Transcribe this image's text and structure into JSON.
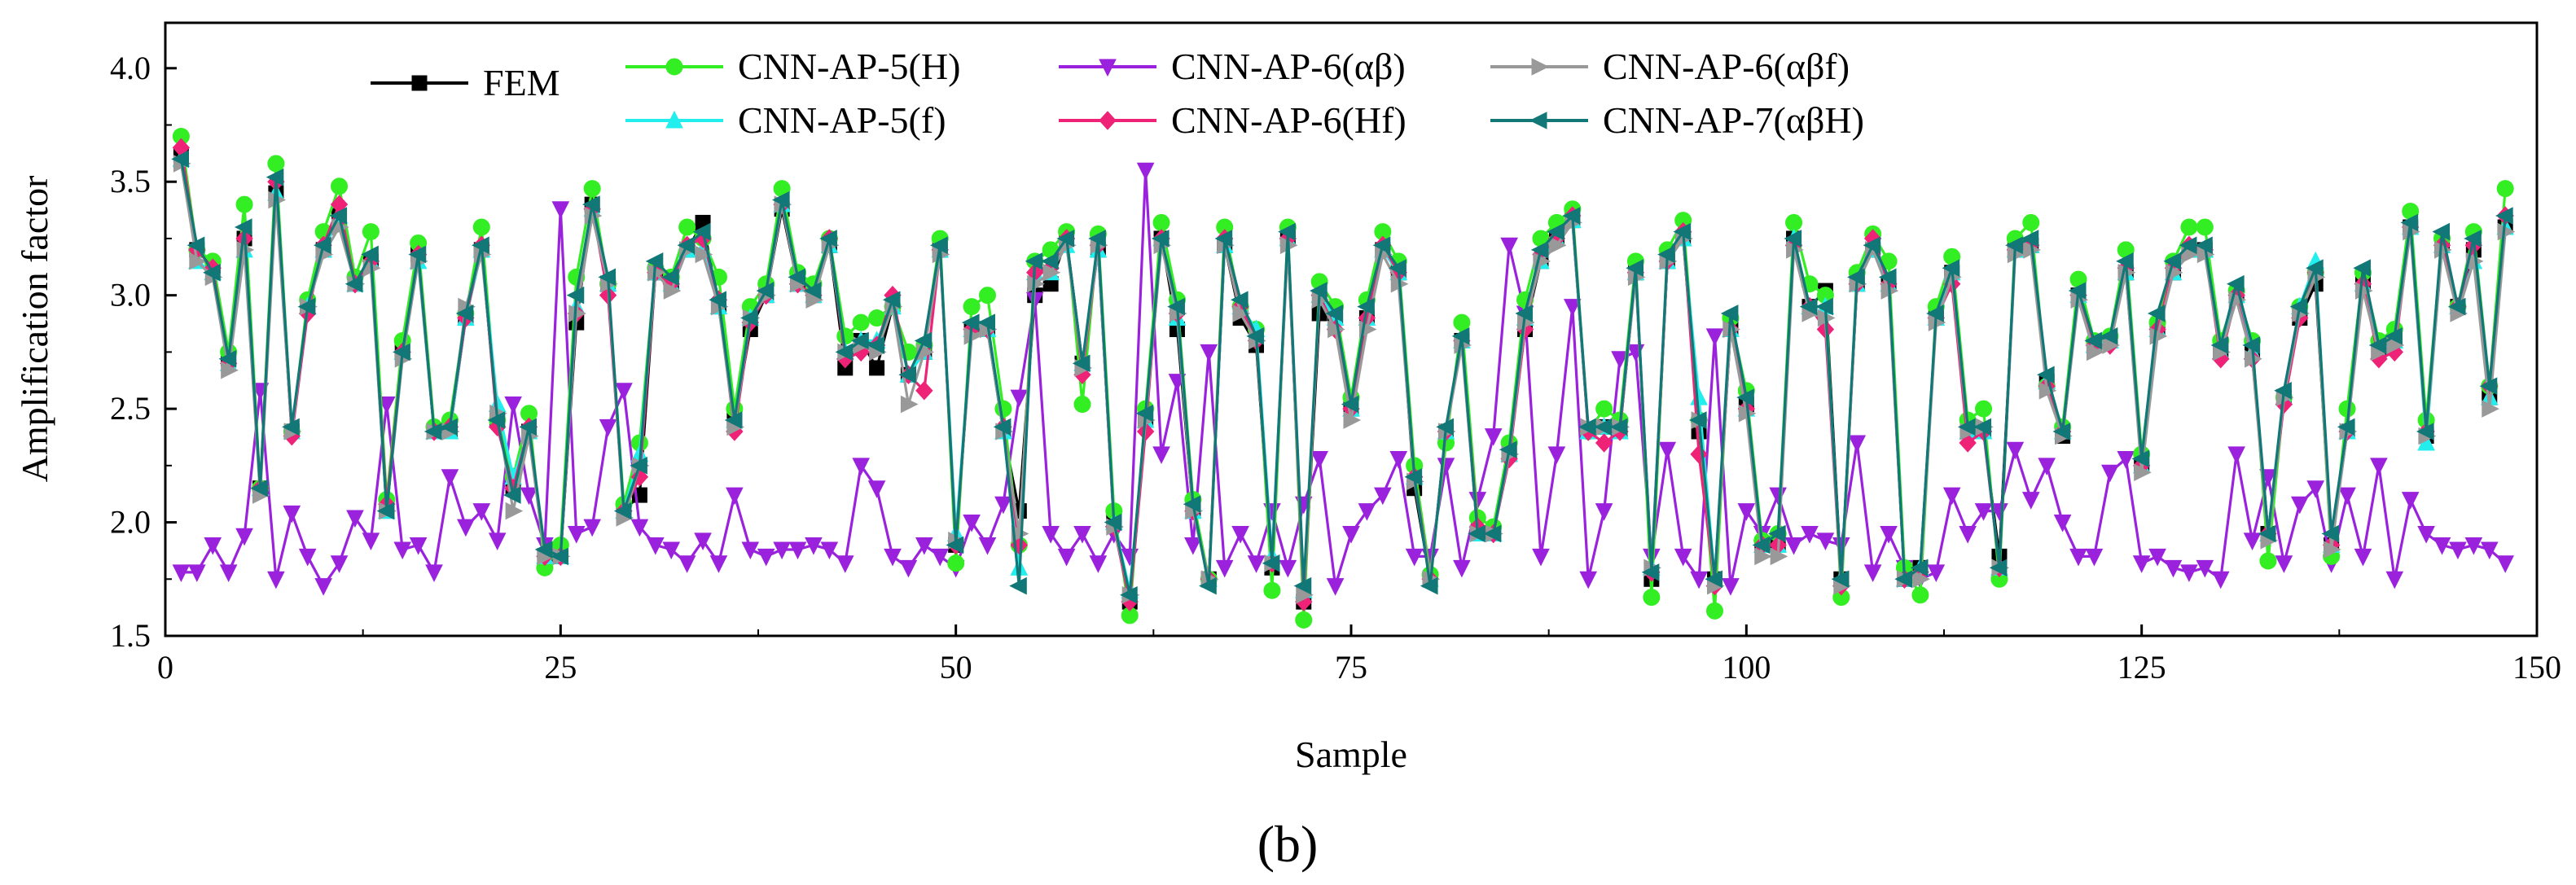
{
  "chart_data": {
    "type": "line",
    "title": "",
    "xlabel": "Sample",
    "ylabel": "Amplification factor",
    "panel_label": "(b)",
    "xlim": [
      0,
      150
    ],
    "ylim": [
      1.5,
      4.2
    ],
    "xticks": [
      0,
      25,
      50,
      75,
      100,
      125,
      150
    ],
    "yticks": [
      1.5,
      2.0,
      2.5,
      3.0,
      3.5,
      4.0
    ],
    "x_tick_labels": [
      "0",
      "25",
      "50",
      "75",
      "100",
      "125",
      "150"
    ],
    "y_tick_labels": [
      "1.5",
      "2.0",
      "2.5",
      "3.0",
      "3.5",
      "4.0"
    ],
    "grid": false,
    "legend_position": "top",
    "x_start": 1,
    "x_step": 1,
    "series": [
      {
        "name": "FEM",
        "color": "#000000",
        "marker": "square",
        "values": [
          3.62,
          3.2,
          3.13,
          2.72,
          3.25,
          2.15,
          3.45,
          2.4,
          2.95,
          3.2,
          3.35,
          3.05,
          3.15,
          2.05,
          2.75,
          3.18,
          2.4,
          2.4,
          2.9,
          3.2,
          2.45,
          2.15,
          2.4,
          1.85,
          1.85,
          2.88,
          3.4,
          3.05,
          2.05,
          2.12,
          3.1,
          3.05,
          3.2,
          3.32,
          2.95,
          2.45,
          2.85,
          3.0,
          3.38,
          3.05,
          3.0,
          3.22,
          2.68,
          2.8,
          2.68,
          2.95,
          2.65,
          2.75,
          3.2,
          1.9,
          2.85,
          2.85,
          2.4,
          2.05,
          3.0,
          3.05,
          3.25,
          2.7,
          3.2,
          2.0,
          1.65,
          2.45,
          3.25,
          2.85,
          2.05,
          1.75,
          3.22,
          2.9,
          2.78,
          1.8,
          3.25,
          1.65,
          2.92,
          2.9,
          2.5,
          2.9,
          3.2,
          3.1,
          2.15,
          1.75,
          2.4,
          2.8,
          1.95,
          1.95,
          2.3,
          2.85,
          3.15,
          3.25,
          3.33,
          2.4,
          2.42,
          2.4,
          3.1,
          1.75,
          3.15,
          3.25,
          2.4,
          1.75,
          2.85,
          2.52,
          1.9,
          1.9,
          3.25,
          2.95,
          3.02,
          1.75,
          3.05,
          3.2,
          3.05,
          1.75,
          1.8,
          2.9,
          3.1,
          2.4,
          2.4,
          1.85,
          3.2,
          3.22,
          2.62,
          2.38,
          3.0,
          2.78,
          2.8,
          3.1,
          2.25,
          2.85,
          3.1,
          3.2,
          3.2,
          2.75,
          3.0,
          2.75,
          1.95,
          2.55,
          2.9,
          3.05,
          1.9,
          2.4,
          3.05,
          2.75,
          2.8,
          3.3,
          2.38,
          3.22,
          2.95,
          3.2,
          2.55,
          3.3
        ]
      },
      {
        "name": "CNN-AP-5(H)",
        "color": "#33ee22",
        "marker": "circle",
        "values": [
          3.7,
          3.2,
          3.15,
          2.75,
          3.4,
          2.15,
          3.58,
          2.4,
          2.98,
          3.28,
          3.48,
          3.08,
          3.28,
          2.1,
          2.8,
          3.23,
          2.42,
          2.45,
          2.92,
          3.3,
          2.45,
          2.2,
          2.48,
          1.8,
          1.9,
          3.08,
          3.47,
          3.05,
          2.08,
          2.35,
          3.12,
          3.08,
          3.3,
          3.25,
          3.08,
          2.5,
          2.95,
          3.05,
          3.47,
          3.1,
          3.05,
          3.25,
          2.82,
          2.88,
          2.9,
          2.95,
          2.75,
          2.78,
          3.25,
          1.82,
          2.95,
          3.0,
          2.5,
          1.9,
          3.15,
          3.2,
          3.28,
          2.52,
          3.27,
          2.05,
          1.59,
          2.5,
          3.32,
          2.98,
          2.1,
          1.75,
          3.3,
          2.95,
          2.85,
          1.7,
          3.3,
          1.57,
          3.06,
          2.95,
          2.55,
          2.98,
          3.28,
          3.15,
          2.25,
          1.77,
          2.35,
          2.88,
          2.02,
          1.98,
          2.35,
          2.98,
          3.25,
          3.32,
          3.38,
          2.4,
          2.5,
          2.45,
          3.15,
          1.67,
          3.2,
          3.33,
          2.45,
          1.61,
          2.9,
          2.58,
          1.92,
          1.95,
          3.32,
          3.05,
          3.0,
          1.67,
          3.1,
          3.27,
          3.15,
          1.8,
          1.68,
          2.95,
          3.17,
          2.45,
          2.5,
          1.75,
          3.25,
          3.32,
          2.6,
          2.42,
          3.07,
          2.8,
          2.82,
          3.2,
          2.3,
          2.88,
          3.15,
          3.3,
          3.3,
          2.8,
          3.02,
          2.8,
          1.83,
          2.55,
          2.95,
          3.1,
          1.85,
          2.5,
          3.1,
          2.8,
          2.85,
          3.37,
          2.45,
          3.25,
          2.95,
          3.28,
          2.6,
          3.47
        ]
      },
      {
        "name": "CNN-AP-5(f)",
        "color": "#22eeee",
        "marker": "triangle-up",
        "values": [
          3.6,
          3.15,
          3.1,
          2.7,
          3.2,
          2.15,
          3.45,
          2.4,
          2.95,
          3.2,
          3.35,
          3.05,
          3.15,
          2.05,
          2.75,
          3.15,
          2.4,
          2.4,
          2.9,
          3.2,
          2.52,
          2.2,
          2.4,
          1.85,
          1.85,
          2.95,
          3.38,
          3.05,
          2.05,
          2.3,
          3.1,
          3.05,
          3.2,
          3.2,
          2.95,
          2.45,
          2.9,
          3.0,
          3.4,
          3.05,
          3.0,
          3.22,
          2.75,
          2.8,
          2.8,
          2.95,
          2.65,
          2.75,
          3.2,
          1.95,
          2.85,
          2.85,
          2.4,
          1.8,
          3.1,
          3.1,
          3.22,
          2.7,
          3.2,
          2.0,
          1.7,
          2.45,
          3.25,
          2.9,
          2.05,
          1.75,
          3.22,
          2.95,
          2.85,
          1.85,
          3.25,
          1.7,
          3.0,
          2.9,
          2.5,
          2.9,
          3.2,
          3.1,
          2.2,
          1.75,
          2.4,
          2.8,
          1.95,
          1.95,
          2.3,
          2.9,
          3.15,
          3.25,
          3.33,
          2.4,
          2.42,
          2.4,
          3.1,
          1.8,
          3.15,
          3.25,
          2.55,
          1.75,
          2.85,
          2.5,
          1.9,
          1.9,
          3.25,
          2.95,
          2.95,
          1.75,
          3.05,
          3.2,
          3.05,
          1.75,
          1.8,
          2.9,
          3.1,
          2.4,
          2.4,
          1.8,
          3.2,
          3.22,
          2.62,
          2.4,
          3.0,
          2.78,
          2.8,
          3.1,
          2.25,
          2.85,
          3.1,
          3.2,
          3.2,
          2.75,
          3.0,
          2.75,
          1.95,
          2.55,
          2.95,
          3.15,
          1.9,
          2.4,
          3.05,
          2.75,
          2.8,
          3.3,
          2.35,
          3.22,
          2.95,
          3.15,
          2.55,
          3.3
        ]
      },
      {
        "name": "CNN-AP-6(αβ)",
        "color": "#9a22dd",
        "marker": "triangle-down",
        "values": [
          1.78,
          1.78,
          1.9,
          1.78,
          1.94,
          2.58,
          1.75,
          2.04,
          1.85,
          1.72,
          1.82,
          2.02,
          1.92,
          2.52,
          1.88,
          1.9,
          1.78,
          2.2,
          1.98,
          2.05,
          1.92,
          2.52,
          2.12,
          1.9,
          3.38,
          1.95,
          1.98,
          2.42,
          2.58,
          1.98,
          1.9,
          1.88,
          1.82,
          1.92,
          1.82,
          2.12,
          1.88,
          1.85,
          1.88,
          1.88,
          1.9,
          1.88,
          1.82,
          2.25,
          2.15,
          1.85,
          1.8,
          1.9,
          1.85,
          1.8,
          2.0,
          1.9,
          2.08,
          2.55,
          2.98,
          1.95,
          1.85,
          1.95,
          1.82,
          1.95,
          1.85,
          3.55,
          2.3,
          2.62,
          1.9,
          2.75,
          1.8,
          1.95,
          1.82,
          2.05,
          1.8,
          2.08,
          2.28,
          1.72,
          1.95,
          2.05,
          2.12,
          2.28,
          1.85,
          1.85,
          2.25,
          1.8,
          2.1,
          2.38,
          3.22,
          2.92,
          1.85,
          2.3,
          2.95,
          1.75,
          2.05,
          2.72,
          2.75,
          1.85,
          2.32,
          1.85,
          1.75,
          2.82,
          1.72,
          2.05,
          1.95,
          2.12,
          1.9,
          1.95,
          1.92,
          1.9,
          2.35,
          1.78,
          1.95,
          1.8,
          1.75,
          1.78,
          2.12,
          1.95,
          2.05,
          2.05,
          2.32,
          2.1,
          2.25,
          2.0,
          1.85,
          1.85,
          2.22,
          2.28,
          1.82,
          1.85,
          1.8,
          1.78,
          1.8,
          1.75,
          2.3,
          1.92,
          2.2,
          1.82,
          2.08,
          2.15,
          1.82,
          2.12,
          1.85,
          2.25,
          1.75,
          2.1,
          1.95,
          1.9,
          1.88,
          1.9,
          1.88,
          1.82
        ]
      },
      {
        "name": "CNN-AP-6(Hf)",
        "color": "#ee2277",
        "marker": "diamond",
        "values": [
          3.65,
          3.2,
          3.12,
          2.7,
          3.25,
          2.15,
          3.5,
          2.38,
          2.92,
          3.22,
          3.4,
          3.05,
          3.15,
          2.08,
          2.75,
          3.18,
          2.4,
          2.42,
          2.9,
          3.22,
          2.42,
          2.15,
          2.42,
          1.85,
          1.85,
          2.92,
          3.38,
          3.0,
          2.05,
          2.2,
          3.1,
          3.05,
          3.22,
          3.25,
          2.98,
          2.4,
          2.88,
          3.0,
          3.4,
          3.05,
          3.0,
          3.25,
          2.72,
          2.75,
          2.78,
          3.0,
          2.65,
          2.58,
          3.2,
          1.9,
          2.85,
          2.85,
          2.42,
          1.9,
          3.1,
          3.12,
          3.25,
          2.65,
          3.22,
          1.98,
          1.65,
          2.4,
          3.25,
          2.92,
          2.05,
          1.75,
          3.25,
          2.95,
          2.8,
          1.82,
          3.25,
          1.65,
          3.0,
          2.85,
          2.5,
          2.9,
          3.22,
          3.1,
          2.2,
          1.75,
          2.4,
          2.8,
          1.98,
          1.95,
          2.28,
          2.85,
          3.18,
          3.25,
          3.35,
          2.4,
          2.35,
          2.4,
          3.1,
          1.78,
          3.15,
          3.28,
          2.3,
          1.72,
          2.85,
          2.5,
          1.9,
          1.9,
          3.22,
          2.95,
          2.85,
          1.72,
          3.05,
          3.25,
          3.05,
          1.75,
          1.78,
          2.9,
          3.05,
          2.35,
          2.4,
          1.8,
          3.2,
          3.22,
          2.6,
          2.4,
          3.0,
          2.78,
          2.78,
          3.12,
          2.25,
          2.85,
          3.12,
          3.22,
          3.2,
          2.72,
          3.0,
          2.72,
          1.95,
          2.52,
          2.9,
          3.1,
          1.9,
          2.4,
          3.05,
          2.72,
          2.75,
          3.3,
          2.4,
          3.22,
          2.95,
          3.22,
          2.6,
          3.35
        ]
      },
      {
        "name": "CNN-AP-6(αβf)",
        "color": "#999999",
        "marker": "triangle-right",
        "values": [
          3.58,
          3.15,
          3.08,
          2.67,
          3.2,
          2.12,
          3.42,
          2.4,
          2.95,
          3.18,
          3.3,
          3.05,
          3.12,
          2.05,
          2.72,
          3.15,
          2.4,
          2.4,
          2.95,
          3.18,
          2.48,
          2.05,
          2.38,
          1.85,
          1.85,
          2.92,
          3.35,
          3.05,
          2.02,
          2.25,
          3.1,
          3.02,
          3.2,
          3.18,
          2.95,
          2.42,
          2.9,
          3.0,
          3.4,
          3.05,
          2.98,
          3.22,
          2.75,
          2.78,
          2.75,
          2.95,
          2.52,
          2.75,
          3.18,
          1.92,
          2.82,
          2.85,
          2.4,
          1.95,
          3.05,
          3.1,
          3.22,
          2.68,
          3.22,
          1.98,
          1.68,
          2.45,
          3.22,
          2.92,
          2.05,
          1.75,
          3.22,
          2.92,
          2.8,
          1.82,
          3.22,
          1.68,
          2.98,
          2.85,
          2.45,
          2.85,
          3.18,
          3.05,
          2.18,
          1.75,
          2.4,
          2.78,
          1.95,
          1.95,
          2.3,
          2.88,
          3.15,
          3.22,
          3.32,
          2.42,
          2.42,
          2.42,
          3.08,
          1.8,
          3.15,
          3.25,
          2.45,
          1.72,
          2.85,
          2.48,
          1.85,
          1.85,
          3.2,
          2.92,
          2.9,
          1.72,
          3.05,
          3.2,
          3.02,
          1.75,
          1.75,
          2.88,
          3.08,
          2.4,
          2.42,
          1.8,
          3.18,
          3.2,
          2.58,
          2.38,
          2.98,
          2.75,
          2.78,
          3.1,
          2.22,
          2.82,
          3.1,
          3.18,
          3.18,
          2.75,
          2.98,
          2.72,
          1.92,
          2.55,
          2.92,
          3.08,
          1.88,
          2.4,
          3.02,
          2.75,
          2.78,
          3.28,
          2.38,
          3.2,
          2.92,
          3.15,
          2.5,
          3.28
        ]
      },
      {
        "name": "CNN-AP-7(αβH)",
        "color": "#117777",
        "marker": "triangle-left",
        "values": [
          3.6,
          3.22,
          3.1,
          2.72,
          3.3,
          2.15,
          3.52,
          2.42,
          2.95,
          3.22,
          3.35,
          3.05,
          3.18,
          2.05,
          2.75,
          3.18,
          2.4,
          2.42,
          2.92,
          3.22,
          2.45,
          2.12,
          2.42,
          1.88,
          1.85,
          3.0,
          3.4,
          3.08,
          2.05,
          2.25,
          3.15,
          3.08,
          3.22,
          3.28,
          2.98,
          2.45,
          2.9,
          3.02,
          3.42,
          3.08,
          3.02,
          3.25,
          2.75,
          2.8,
          2.78,
          2.98,
          2.65,
          2.8,
          3.22,
          1.9,
          2.88,
          2.88,
          2.42,
          1.72,
          3.15,
          3.15,
          3.25,
          2.7,
          3.25,
          2.0,
          1.68,
          2.48,
          3.25,
          2.95,
          2.08,
          1.72,
          3.25,
          2.98,
          2.82,
          1.82,
          3.28,
          1.72,
          3.02,
          2.92,
          2.52,
          2.95,
          3.22,
          3.12,
          2.2,
          1.72,
          2.42,
          2.82,
          1.95,
          1.95,
          2.32,
          2.92,
          3.2,
          3.28,
          3.35,
          2.42,
          2.42,
          2.42,
          3.12,
          1.78,
          3.18,
          3.28,
          2.45,
          1.75,
          2.92,
          2.55,
          1.9,
          1.95,
          3.25,
          2.95,
          2.95,
          1.75,
          3.08,
          3.22,
          3.08,
          1.75,
          1.8,
          2.92,
          3.12,
          2.42,
          2.42,
          1.8,
          3.22,
          3.25,
          2.65,
          2.4,
          3.02,
          2.8,
          2.82,
          3.15,
          2.28,
          2.92,
          3.15,
          3.22,
          3.22,
          2.78,
          3.05,
          2.78,
          1.95,
          2.58,
          2.95,
          3.12,
          1.95,
          2.42,
          3.12,
          2.78,
          2.82,
          3.32,
          2.4,
          3.28,
          2.95,
          3.25,
          2.6,
          3.35
        ]
      }
    ]
  }
}
